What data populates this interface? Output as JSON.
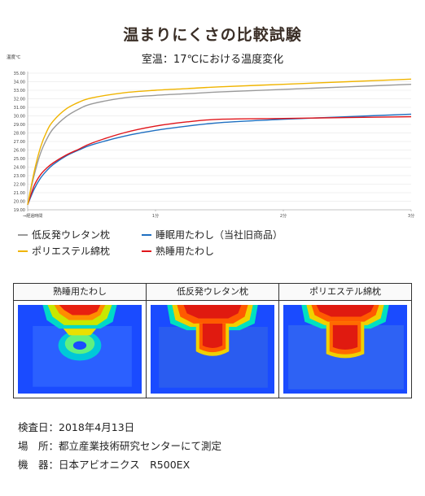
{
  "page": {
    "title": "温まりにくさの比較試験",
    "subtitle": "室温：17℃における温度変化"
  },
  "colors": {
    "gray": "#9a9a9a",
    "yellow": "#f0b400",
    "blue": "#1f6fc1",
    "red": "#e0151b"
  },
  "chart_data": {
    "type": "line",
    "title": "",
    "ylabel": "温度℃",
    "xlabel": "",
    "ylim": [
      19.0,
      34.0
    ],
    "xlim": [
      0,
      3
    ],
    "yticks": [
      "19.00",
      "20.00",
      "21.00",
      "22.00",
      "23.00",
      "24.00",
      "25.00",
      "26.00",
      "27.00",
      "28.00",
      "29.00",
      "30.00",
      "31.00",
      "32.00",
      "33.00",
      "34.00",
      "35.00"
    ],
    "xticks": [
      {
        "x": 0,
        "label": "⇒経過時間"
      },
      {
        "x": 1,
        "label": "1分"
      },
      {
        "x": 2,
        "label": "2分"
      },
      {
        "x": 3,
        "label": "3分"
      }
    ],
    "grid": true,
    "x": [
      0,
      0.05,
      0.1,
      0.15,
      0.2,
      0.3,
      0.4,
      0.5,
      0.75,
      1.0,
      1.25,
      1.5,
      2.0,
      2.5,
      3.0
    ],
    "series": [
      {
        "name": "低反発ウレタン枕",
        "color_key": "gray",
        "values": [
          19.6,
          23.0,
          25.6,
          27.3,
          28.5,
          29.9,
          30.8,
          31.4,
          32.1,
          32.4,
          32.6,
          32.8,
          33.1,
          33.4,
          33.7
        ]
      },
      {
        "name": "ポリエステル綿枕",
        "color_key": "yellow",
        "values": [
          19.6,
          23.4,
          26.3,
          28.2,
          29.4,
          30.8,
          31.6,
          32.1,
          32.7,
          33.0,
          33.2,
          33.4,
          33.7,
          34.0,
          34.3
        ]
      },
      {
        "name": "睡眠用たわし（当社旧商品）",
        "color_key": "blue",
        "values": [
          19.6,
          21.4,
          22.7,
          23.6,
          24.3,
          25.3,
          26.0,
          26.6,
          27.6,
          28.3,
          28.8,
          29.2,
          29.6,
          29.9,
          30.2
        ]
      },
      {
        "name": "熟睡用たわし",
        "color_key": "red",
        "values": [
          19.6,
          21.8,
          23.1,
          23.9,
          24.5,
          25.4,
          26.1,
          26.8,
          28.0,
          28.8,
          29.3,
          29.6,
          29.7,
          29.8,
          29.9
        ]
      }
    ],
    "legend": "bottom"
  },
  "legend_items": [
    {
      "label": "低反発ウレタン枕",
      "color_key": "gray"
    },
    {
      "label": "睡眠用たわし（当社旧商品）",
      "color_key": "blue"
    },
    {
      "label": "ポリエステル綿枕",
      "color_key": "yellow"
    },
    {
      "label": "熟睡用たわし",
      "color_key": "red"
    }
  ],
  "thermo": [
    {
      "label": "熟睡用たわし"
    },
    {
      "label": "低反発ウレタン枕"
    },
    {
      "label": "ポリエステル綿枕"
    }
  ],
  "info": {
    "date": "検査日：2018年4月13日",
    "place": "場　所：都立産業技術研究センターにて測定",
    "device": "機　器：日本アビオニクス　R500EX"
  }
}
